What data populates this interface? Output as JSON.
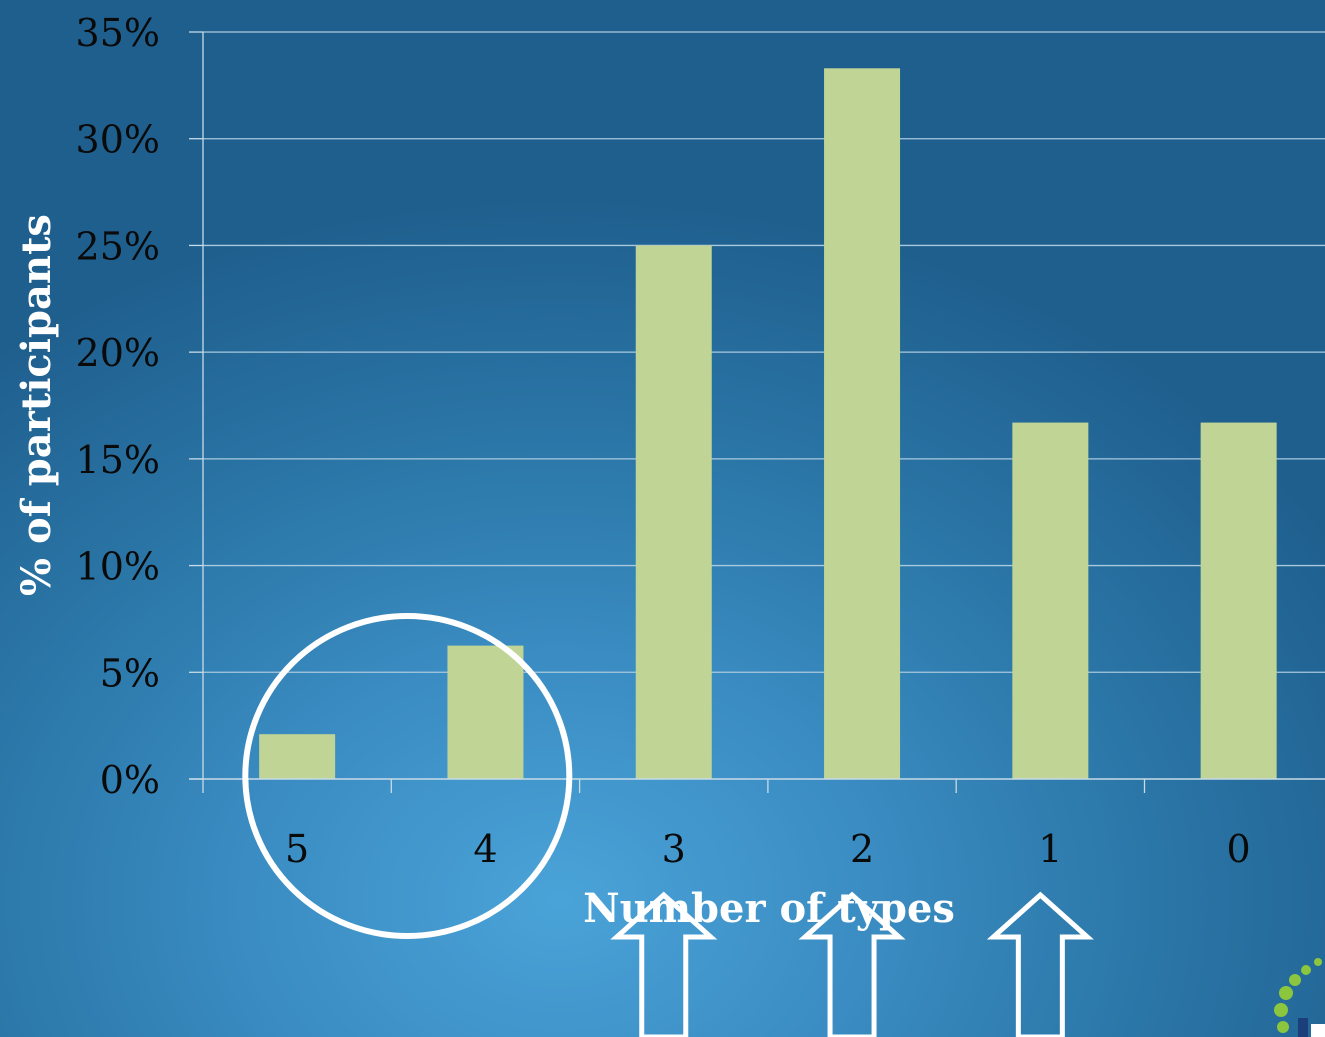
{
  "chart_data": {
    "type": "bar",
    "categories": [
      "5",
      "4",
      "3",
      "2",
      "1",
      "0"
    ],
    "values": [
      2.1,
      6.25,
      25.0,
      33.3,
      16.7,
      16.7
    ],
    "y_ticks": [
      "0%",
      "5%",
      "10%",
      "15%",
      "20%",
      "25%",
      "30%",
      "35%"
    ],
    "ylim": [
      0,
      35
    ],
    "xlabel": "Number of types",
    "ylabel": "% of participants",
    "grid": true,
    "colors": {
      "bar": "#c0d495",
      "grid": "#a9c9de",
      "axis": "#c8dbe8",
      "annotation": "#ffffff"
    }
  },
  "annotations": {
    "highlight_circle_categories": [
      "5",
      "4"
    ],
    "arrow_categories": [
      "3",
      "2",
      "1"
    ]
  },
  "logo": {
    "icon": "dotted-arc-logo-icon"
  }
}
